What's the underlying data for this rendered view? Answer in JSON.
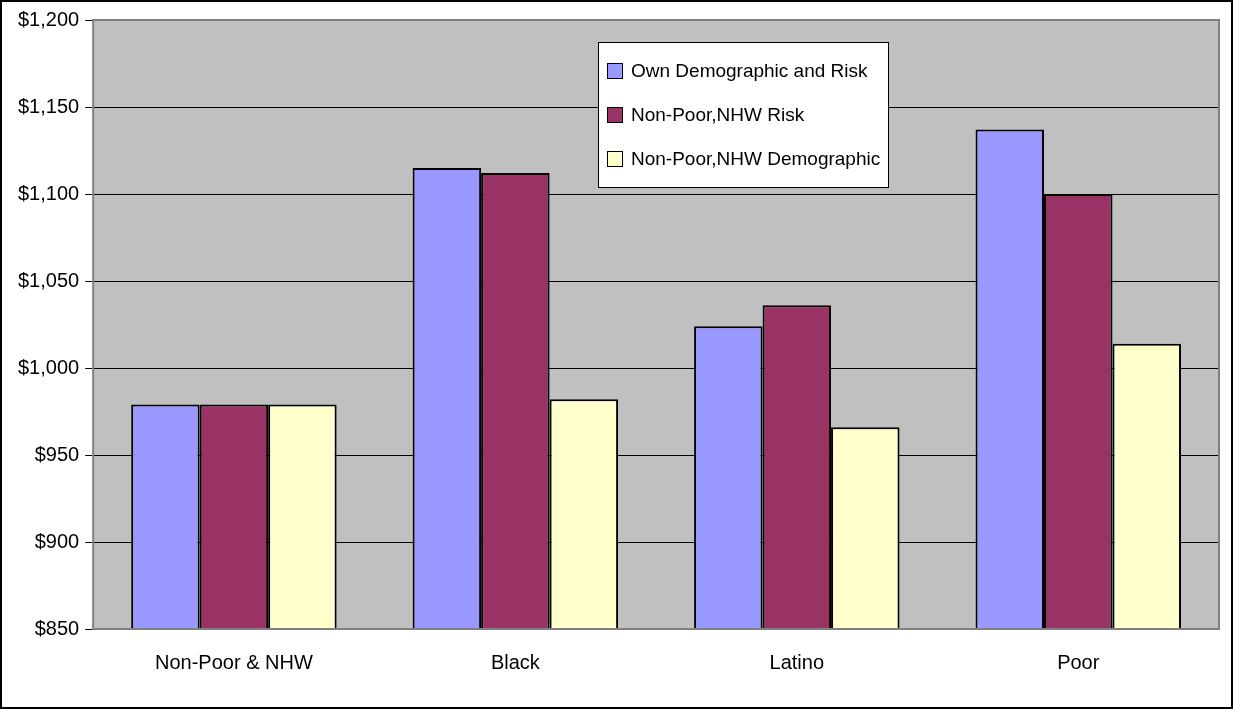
{
  "chart_data": {
    "type": "bar",
    "categories": [
      "Non-Poor & NHW",
      "Black",
      "Latino",
      "Poor"
    ],
    "series": [
      {
        "name": "Own Demographic and Risk",
        "color": "#9999ff",
        "values": [
          979,
          1115,
          1024,
          1137
        ]
      },
      {
        "name": "Non-Poor,NHW Risk",
        "color": "#993366",
        "values": [
          979,
          1112,
          1036,
          1100
        ]
      },
      {
        "name": "Non-Poor,NHW Demographic",
        "color": "#ffffcc",
        "values": [
          979,
          982,
          966,
          1014
        ]
      }
    ],
    "ylim": [
      850,
      1200
    ],
    "yticks": [
      {
        "value": 850,
        "label": "$850"
      },
      {
        "value": 900,
        "label": "$900"
      },
      {
        "value": 950,
        "label": "$950"
      },
      {
        "value": 1000,
        "label": "$1,000"
      },
      {
        "value": 1050,
        "label": "$1,050"
      },
      {
        "value": 1100,
        "label": "$1,100"
      },
      {
        "value": 1150,
        "label": "$1,150"
      },
      {
        "value": 1200,
        "label": "$1,200"
      }
    ],
    "grid": "y",
    "legend": "top right"
  }
}
